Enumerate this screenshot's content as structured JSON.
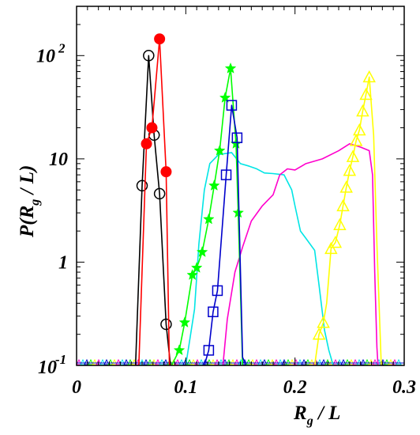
{
  "chart_data": {
    "type": "line",
    "xlabel": {
      "main": "R",
      "sub": "g",
      "rest": " / L"
    },
    "ylabel": {
      "pre": "P(R",
      "sub": "g",
      "post": " / L)"
    },
    "xlim": [
      0,
      0.3
    ],
    "ylim": [
      0.1,
      300
    ],
    "yscale": "log",
    "grid": false,
    "legend": "none",
    "xticks": [
      {
        "value": 0,
        "label": "0"
      },
      {
        "value": 0.1,
        "label": "0.1"
      },
      {
        "value": 0.2,
        "label": "0.2"
      },
      {
        "value": 0.3,
        "label": "0.3"
      }
    ],
    "yticks": [
      {
        "value": 0.1,
        "label": "10",
        "exp": "-1"
      },
      {
        "value": 1,
        "label": "1",
        "exp": ""
      },
      {
        "value": 10,
        "label": "10",
        "exp": ""
      },
      {
        "value": 100,
        "label": "10",
        "exp": "2"
      }
    ],
    "series": [
      {
        "color": "#000000",
        "marker": "open-circle",
        "line": [
          [
            0.054,
            0.1
          ],
          [
            0.06,
            5.5
          ],
          [
            0.066,
            100
          ],
          [
            0.071,
            17
          ],
          [
            0.076,
            4.6
          ],
          [
            0.082,
            0.25
          ],
          [
            0.086,
            0.1
          ]
        ],
        "markers": [
          [
            0.06,
            5.5
          ],
          [
            0.066,
            100
          ],
          [
            0.071,
            17
          ],
          [
            0.076,
            4.6
          ],
          [
            0.082,
            0.25
          ]
        ]
      },
      {
        "color": "#ff0000",
        "marker": "filled-circle",
        "line": [
          [
            0.057,
            0.1
          ],
          [
            0.064,
            14
          ],
          [
            0.069,
            20
          ],
          [
            0.076,
            145
          ],
          [
            0.082,
            7.5
          ],
          [
            0.085,
            0.1
          ]
        ],
        "markers": [
          [
            0.064,
            14
          ],
          [
            0.069,
            20
          ],
          [
            0.076,
            145
          ],
          [
            0.082,
            7.5
          ]
        ]
      },
      {
        "color": "#00ff00",
        "marker": "filled-star",
        "line": [
          [
            0.087,
            0.1
          ],
          [
            0.094,
            0.14
          ],
          [
            0.099,
            0.26
          ],
          [
            0.106,
            0.75
          ],
          [
            0.11,
            0.88
          ],
          [
            0.115,
            1.25
          ],
          [
            0.121,
            2.6
          ],
          [
            0.126,
            5.5
          ],
          [
            0.131,
            12
          ],
          [
            0.136,
            39
          ],
          [
            0.141,
            75
          ],
          [
            0.146,
            14
          ],
          [
            0.148,
            3
          ],
          [
            0.152,
            0.1
          ]
        ],
        "markers": [
          [
            0.094,
            0.14
          ],
          [
            0.099,
            0.26
          ],
          [
            0.106,
            0.75
          ],
          [
            0.11,
            0.88
          ],
          [
            0.115,
            1.25
          ],
          [
            0.121,
            2.6
          ],
          [
            0.126,
            5.5
          ],
          [
            0.131,
            12
          ],
          [
            0.136,
            39
          ],
          [
            0.141,
            75
          ],
          [
            0.146,
            14
          ],
          [
            0.148,
            3
          ]
        ]
      },
      {
        "color": "#0000cc",
        "marker": "open-square",
        "line": [
          [
            0.117,
            0.1
          ],
          [
            0.121,
            0.14
          ],
          [
            0.125,
            0.33
          ],
          [
            0.129,
            0.53
          ],
          [
            0.137,
            7
          ],
          [
            0.142,
            33
          ],
          [
            0.147,
            16
          ],
          [
            0.152,
            0.12
          ],
          [
            0.155,
            0.1
          ]
        ],
        "markers": [
          [
            0.121,
            0.14
          ],
          [
            0.125,
            0.33
          ],
          [
            0.129,
            0.53
          ],
          [
            0.137,
            7
          ],
          [
            0.142,
            33
          ],
          [
            0.147,
            16
          ]
        ]
      },
      {
        "color": "#00e5e5",
        "marker": "none",
        "line": [
          [
            0.1,
            0.1
          ],
          [
            0.108,
            0.35
          ],
          [
            0.112,
            1.5
          ],
          [
            0.117,
            5
          ],
          [
            0.122,
            9
          ],
          [
            0.13,
            11
          ],
          [
            0.142,
            11.5
          ],
          [
            0.15,
            9
          ],
          [
            0.158,
            8.5
          ],
          [
            0.165,
            8
          ],
          [
            0.172,
            7.3
          ],
          [
            0.18,
            7.2
          ],
          [
            0.19,
            7
          ],
          [
            0.197,
            5
          ],
          [
            0.2,
            3.5
          ],
          [
            0.205,
            2
          ],
          [
            0.21,
            1.7
          ],
          [
            0.218,
            1.3
          ],
          [
            0.222,
            0.6
          ],
          [
            0.227,
            0.22
          ],
          [
            0.231,
            0.14
          ],
          [
            0.235,
            0.1
          ]
        ],
        "markers": []
      },
      {
        "color": "#ff00cc",
        "marker": "none",
        "line": [
          [
            0.134,
            0.1
          ],
          [
            0.138,
            0.28
          ],
          [
            0.145,
            0.8
          ],
          [
            0.152,
            1.4
          ],
          [
            0.16,
            2.5
          ],
          [
            0.17,
            3.5
          ],
          [
            0.18,
            4.5
          ],
          [
            0.186,
            7
          ],
          [
            0.193,
            8
          ],
          [
            0.2,
            7.8
          ],
          [
            0.21,
            9
          ],
          [
            0.225,
            10
          ],
          [
            0.24,
            12
          ],
          [
            0.25,
            14
          ],
          [
            0.26,
            13
          ],
          [
            0.268,
            12
          ],
          [
            0.271,
            7
          ],
          [
            0.273,
            0.8
          ],
          [
            0.275,
            0.15
          ],
          [
            0.276,
            0.1
          ]
        ],
        "markers": []
      },
      {
        "color": "#ffff00",
        "marker": "open-triangle",
        "line": [
          [
            0.218,
            0.1
          ],
          [
            0.222,
            0.2
          ],
          [
            0.226,
            0.26
          ],
          [
            0.229,
            0.4
          ],
          [
            0.233,
            1.35
          ],
          [
            0.237,
            1.55
          ],
          [
            0.241,
            2.3
          ],
          [
            0.244,
            3.5
          ],
          [
            0.247,
            5.3
          ],
          [
            0.25,
            7.7
          ],
          [
            0.253,
            10.5
          ],
          [
            0.256,
            15
          ],
          [
            0.259,
            19
          ],
          [
            0.262,
            29
          ],
          [
            0.265,
            42
          ],
          [
            0.268,
            62
          ],
          [
            0.272,
            17
          ],
          [
            0.275,
            1.5
          ],
          [
            0.279,
            0.1
          ]
        ],
        "markers": [
          [
            0.222,
            0.2
          ],
          [
            0.226,
            0.26
          ],
          [
            0.233,
            1.35
          ],
          [
            0.237,
            1.55
          ],
          [
            0.241,
            2.3
          ],
          [
            0.244,
            3.5
          ],
          [
            0.247,
            5.3
          ],
          [
            0.25,
            7.7
          ],
          [
            0.253,
            10.5
          ],
          [
            0.256,
            15
          ],
          [
            0.259,
            19
          ],
          [
            0.262,
            29
          ],
          [
            0.265,
            42
          ],
          [
            0.268,
            62
          ]
        ]
      }
    ],
    "baseline_colors": [
      "#ff00cc",
      "#00e5e5",
      "#0000cc",
      "#00ff00",
      "#ffff00"
    ]
  }
}
